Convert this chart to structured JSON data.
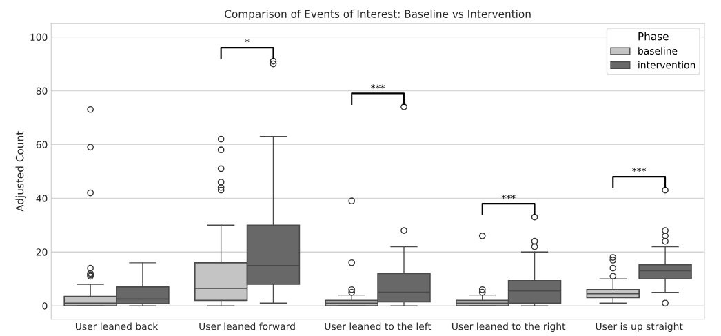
{
  "chart_data": {
    "type": "box",
    "title": "Comparison of Events of Interest: Baseline vs Intervention",
    "ylabel": "Adjusted Count",
    "legend_title": "Phase",
    "legend": "top right",
    "grid": "y",
    "categories": [
      "User leaned back",
      "User leaned forward",
      "User leaned to the left",
      "User leaned to the right",
      "User is up straight"
    ],
    "ylim": [
      -5,
      105
    ],
    "yticks": [
      0,
      20,
      40,
      60,
      80,
      100
    ],
    "series": [
      {
        "name": "baseline",
        "color": "#c4c4c4",
        "boxes": [
          {
            "low": 0,
            "q1": 0,
            "median": 1,
            "q3": 3.5,
            "high": 8,
            "outliers": [
              11,
              11.5,
              12,
              14,
              42,
              59,
              73
            ]
          },
          {
            "low": 0,
            "q1": 2,
            "median": 6.5,
            "q3": 16,
            "high": 30,
            "outliers": [
              43,
              44,
              46,
              51,
              58,
              62
            ]
          },
          {
            "low": 0,
            "q1": 0,
            "median": 1,
            "q3": 2,
            "high": 4,
            "outliers": [
              5,
              6,
              16,
              39
            ]
          },
          {
            "low": 0,
            "q1": 0,
            "median": 1,
            "q3": 2,
            "high": 4,
            "outliers": [
              5,
              6,
              26
            ]
          },
          {
            "low": 1,
            "q1": 3,
            "median": 4.5,
            "q3": 6,
            "high": 10,
            "outliers": [
              11,
              14,
              17,
              18
            ]
          }
        ]
      },
      {
        "name": "intervention",
        "color": "#686868",
        "boxes": [
          {
            "low": 0,
            "q1": 0.8,
            "median": 2.5,
            "q3": 7,
            "high": 16
          },
          {
            "low": 1,
            "q1": 8,
            "median": 15,
            "q3": 30,
            "high": 63,
            "outliers": [
              90,
              91
            ]
          },
          {
            "low": 0,
            "q1": 1.5,
            "median": 5,
            "q3": 12,
            "high": 22,
            "outliers": [
              28,
              74
            ]
          },
          {
            "low": 0,
            "q1": 1,
            "median": 5.5,
            "q3": 9.3,
            "high": 20,
            "outliers": [
              22,
              24,
              33
            ]
          },
          {
            "low": 5,
            "q1": 10,
            "median": 13,
            "q3": 15.3,
            "high": 22,
            "outliers": [
              1,
              24,
              26,
              28,
              43
            ]
          }
        ]
      }
    ],
    "annotations": [
      "*",
      "***",
      "***",
      "***"
    ]
  }
}
